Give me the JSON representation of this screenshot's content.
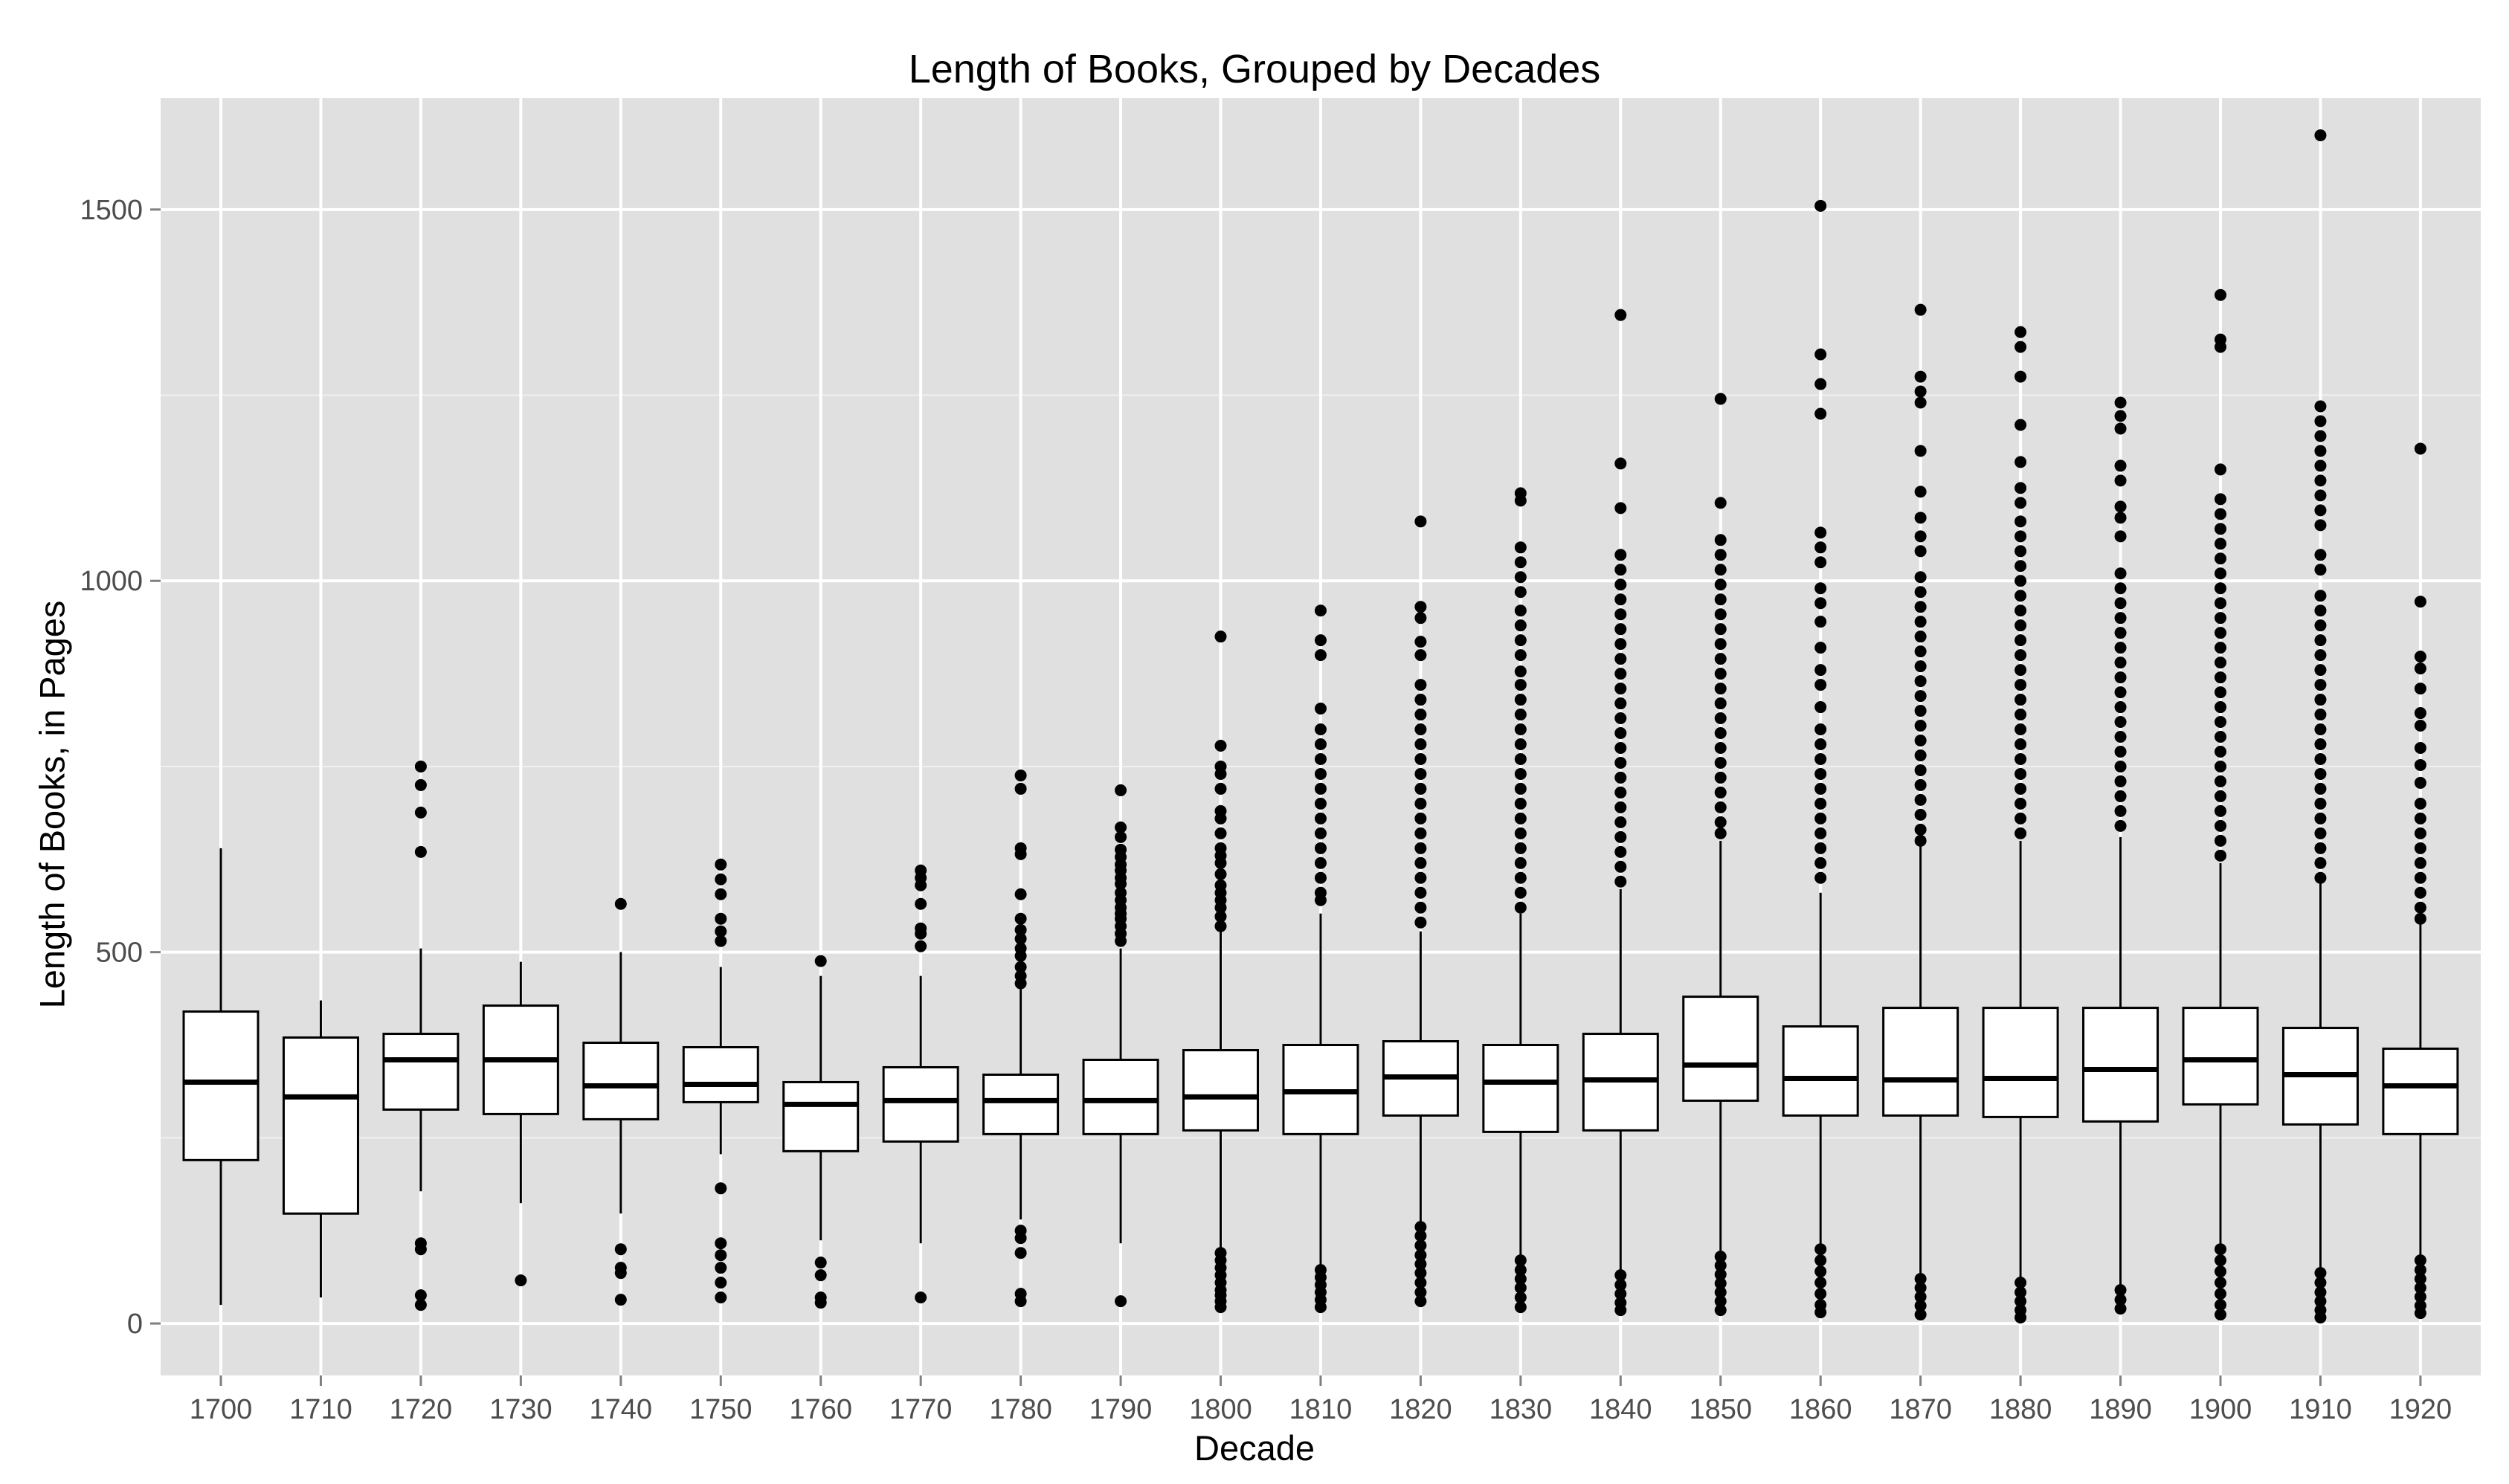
{
  "chart_data": {
    "type": "boxplot",
    "title": "Length of Books, Grouped by Decades",
    "xlabel": "Decade",
    "ylabel": "Length of Books, in Pages",
    "ylim": [
      -70,
      1650
    ],
    "yticks": [
      0,
      500,
      1000,
      1500
    ],
    "grid": true,
    "categories": [
      "1700",
      "1710",
      "1720",
      "1730",
      "1740",
      "1750",
      "1760",
      "1770",
      "1780",
      "1790",
      "1800",
      "1810",
      "1820",
      "1830",
      "1840",
      "1850",
      "1860",
      "1870",
      "1880",
      "1890",
      "1900",
      "1910",
      "1920"
    ],
    "boxes": [
      {
        "decade": "1700",
        "whisker_low": 25,
        "q1": 220,
        "median": 325,
        "q3": 420,
        "whisker_high": 640,
        "outliers": []
      },
      {
        "decade": "1710",
        "whisker_low": 35,
        "q1": 148,
        "median": 305,
        "q3": 385,
        "whisker_high": 435,
        "outliers": []
      },
      {
        "decade": "1720",
        "whisker_low": 178,
        "q1": 288,
        "median": 355,
        "q3": 390,
        "whisker_high": 505,
        "outliers": [
          750,
          725,
          688,
          635,
          108,
          100,
          38,
          25
        ]
      },
      {
        "decade": "1730",
        "whisker_low": 162,
        "q1": 282,
        "median": 355,
        "q3": 428,
        "whisker_high": 487,
        "outliers": [
          58
        ]
      },
      {
        "decade": "1740",
        "whisker_low": 148,
        "q1": 275,
        "median": 320,
        "q3": 378,
        "whisker_high": 500,
        "outliers": [
          565,
          100,
          75,
          68,
          32
        ]
      },
      {
        "decade": "1750",
        "whisker_low": 228,
        "q1": 298,
        "median": 322,
        "q3": 372,
        "whisker_high": 480,
        "outliers": [
          618,
          598,
          578,
          545,
          528,
          515,
          182,
          108,
          92,
          75,
          55,
          35
        ]
      },
      {
        "decade": "1760",
        "whisker_low": 112,
        "q1": 232,
        "median": 295,
        "q3": 325,
        "whisker_high": 468,
        "outliers": [
          488,
          82,
          65,
          35,
          28
        ]
      },
      {
        "decade": "1770",
        "whisker_low": 108,
        "q1": 245,
        "median": 300,
        "q3": 345,
        "whisker_high": 468,
        "outliers": [
          610,
          600,
          590,
          565,
          532,
          525,
          508,
          35
        ]
      },
      {
        "decade": "1780",
        "whisker_low": 140,
        "q1": 255,
        "median": 300,
        "q3": 335,
        "whisker_high": 450,
        "outliers": [
          738,
          720,
          640,
          632,
          578,
          545,
          530,
          518,
          505,
          495,
          480,
          468,
          458,
          125,
          115,
          95,
          40,
          30
        ]
      },
      {
        "decade": "1790",
        "whisker_low": 108,
        "q1": 255,
        "median": 300,
        "q3": 355,
        "whisker_high": 505,
        "outliers": [
          718,
          668,
          655,
          638,
          628,
          618,
          610,
          600,
          592,
          580,
          570,
          560,
          552,
          545,
          535,
          525,
          515,
          30
        ]
      },
      {
        "decade": "1800",
        "whisker_low": 98,
        "q1": 260,
        "median": 305,
        "q3": 368,
        "whisker_high": 528,
        "outliers": [
          925,
          778,
          750,
          740,
          720,
          690,
          680,
          660,
          640,
          630,
          620,
          605,
          590,
          580,
          570,
          560,
          548,
          535,
          95,
          85,
          75,
          65,
          55,
          45,
          38,
          30,
          22
        ]
      },
      {
        "decade": "1810",
        "whisker_low": 78,
        "q1": 255,
        "median": 312,
        "q3": 375,
        "whisker_high": 552,
        "outliers": [
          960,
          920,
          900,
          828,
          800,
          780,
          760,
          740,
          720,
          700,
          680,
          660,
          640,
          620,
          600,
          580,
          570,
          72,
          62,
          52,
          42,
          32,
          22
        ]
      },
      {
        "decade": "1820",
        "whisker_low": 130,
        "q1": 280,
        "median": 332,
        "q3": 380,
        "whisker_high": 528,
        "outliers": [
          1080,
          965,
          950,
          918,
          900,
          860,
          840,
          820,
          800,
          780,
          760,
          740,
          720,
          700,
          680,
          660,
          640,
          620,
          600,
          580,
          560,
          540,
          130,
          118,
          105,
          92,
          80,
          68,
          55,
          42,
          30
        ]
      },
      {
        "decade": "1830",
        "whisker_low": 88,
        "q1": 258,
        "median": 325,
        "q3": 375,
        "whisker_high": 552,
        "outliers": [
          1118,
          1108,
          1045,
          1025,
          1005,
          985,
          960,
          940,
          920,
          900,
          878,
          860,
          840,
          820,
          800,
          780,
          760,
          740,
          720,
          700,
          680,
          660,
          640,
          620,
          600,
          580,
          560,
          85,
          72,
          60,
          48,
          35,
          22
        ]
      },
      {
        "decade": "1840",
        "whisker_low": 68,
        "q1": 260,
        "median": 328,
        "q3": 390,
        "whisker_high": 585,
        "outliers": [
          1358,
          1158,
          1098,
          1035,
          1015,
          995,
          975,
          955,
          935,
          915,
          895,
          875,
          855,
          835,
          815,
          795,
          775,
          755,
          735,
          715,
          695,
          675,
          655,
          635,
          615,
          595,
          65,
          52,
          40,
          28,
          18
        ]
      },
      {
        "decade": "1850",
        "whisker_low": 92,
        "q1": 300,
        "median": 348,
        "q3": 440,
        "whisker_high": 650,
        "outliers": [
          1245,
          1105,
          1055,
          1035,
          1015,
          995,
          975,
          955,
          935,
          915,
          895,
          875,
          855,
          835,
          815,
          795,
          775,
          755,
          735,
          715,
          695,
          675,
          660,
          90,
          78,
          66,
          54,
          42,
          30,
          18
        ]
      },
      {
        "decade": "1860",
        "whisker_low": 100,
        "q1": 280,
        "median": 330,
        "q3": 400,
        "whisker_high": 580,
        "outliers": [
          1505,
          1305,
          1265,
          1225,
          1065,
          1045,
          1025,
          990,
          970,
          945,
          910,
          880,
          860,
          830,
          800,
          780,
          760,
          740,
          720,
          700,
          680,
          660,
          640,
          620,
          600,
          100,
          85,
          70,
          55,
          40,
          25,
          15
        ]
      },
      {
        "decade": "1870",
        "whisker_low": 62,
        "q1": 280,
        "median": 328,
        "q3": 425,
        "whisker_high": 645,
        "outliers": [
          1365,
          1275,
          1255,
          1240,
          1175,
          1120,
          1085,
          1060,
          1040,
          1005,
          985,
          965,
          945,
          925,
          905,
          885,
          865,
          845,
          825,
          805,
          785,
          765,
          745,
          725,
          705,
          685,
          665,
          650,
          60,
          48,
          36,
          24,
          12
        ]
      },
      {
        "decade": "1880",
        "whisker_low": 55,
        "q1": 278,
        "median": 330,
        "q3": 425,
        "whisker_high": 650,
        "outliers": [
          1335,
          1315,
          1275,
          1210,
          1160,
          1125,
          1105,
          1080,
          1060,
          1040,
          1020,
          1000,
          980,
          960,
          940,
          920,
          900,
          880,
          860,
          840,
          820,
          800,
          780,
          760,
          740,
          720,
          700,
          680,
          660,
          55,
          42,
          30,
          18,
          8
        ]
      },
      {
        "decade": "1890",
        "whisker_low": 45,
        "q1": 272,
        "median": 342,
        "q3": 425,
        "whisker_high": 655,
        "outliers": [
          1240,
          1222,
          1205,
          1155,
          1135,
          1100,
          1085,
          1060,
          1010,
          990,
          970,
          950,
          930,
          910,
          890,
          870,
          850,
          830,
          810,
          790,
          770,
          750,
          730,
          710,
          690,
          670,
          45,
          32,
          20
        ]
      },
      {
        "decade": "1900",
        "whisker_low": 100,
        "q1": 295,
        "median": 355,
        "q3": 425,
        "whisker_high": 620,
        "outliers": [
          1385,
          1325,
          1315,
          1150,
          1110,
          1090,
          1070,
          1050,
          1030,
          1010,
          990,
          970,
          950,
          930,
          910,
          890,
          870,
          850,
          830,
          810,
          790,
          770,
          750,
          730,
          710,
          690,
          670,
          650,
          630,
          100,
          85,
          70,
          55,
          40,
          25,
          12
        ]
      },
      {
        "decade": "1910",
        "whisker_low": 68,
        "q1": 268,
        "median": 335,
        "q3": 398,
        "whisker_high": 595,
        "outliers": [
          1600,
          1235,
          1215,
          1195,
          1175,
          1155,
          1135,
          1115,
          1095,
          1075,
          1035,
          1015,
          980,
          960,
          940,
          920,
          900,
          880,
          860,
          840,
          820,
          800,
          780,
          760,
          740,
          720,
          700,
          680,
          660,
          640,
          620,
          600,
          68,
          55,
          42,
          30,
          18,
          8
        ]
      },
      {
        "decade": "1920",
        "whisker_low": 88,
        "q1": 255,
        "median": 320,
        "q3": 370,
        "whisker_high": 538,
        "outliers": [
          1178,
          972,
          898,
          882,
          855,
          822,
          805,
          775,
          752,
          728,
          700,
          680,
          660,
          640,
          620,
          600,
          580,
          560,
          545,
          85,
          72,
          60,
          48,
          36,
          24,
          14
        ]
      }
    ]
  }
}
